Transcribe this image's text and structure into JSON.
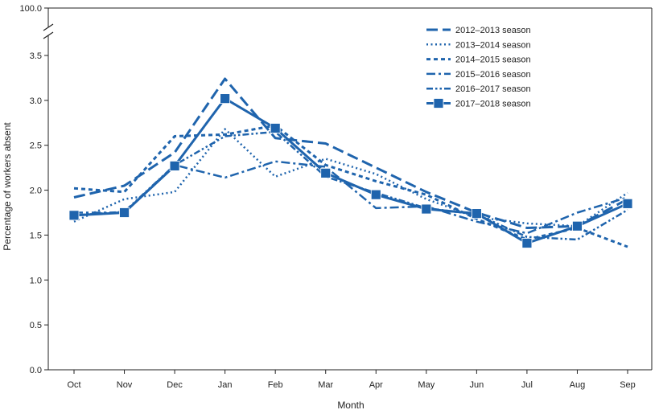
{
  "chart_data": {
    "type": "line",
    "xlabel": "Month",
    "ylabel": "Percentage of workers absent",
    "categories": [
      "Oct",
      "Nov",
      "Dec",
      "Jan",
      "Feb",
      "Mar",
      "Apr",
      "May",
      "Jun",
      "Jul",
      "Aug",
      "Sep"
    ],
    "y_ticks": [
      "0.0",
      "0.5",
      "1.0",
      "1.5",
      "2.0",
      "2.5",
      "3.0",
      "3.5"
    ],
    "y_top_tick": "100.0",
    "ylim": [
      0,
      3.5
    ],
    "axis_break": true,
    "grid": false,
    "legend_position": "top-right",
    "color": "#1f64ad",
    "series": [
      {
        "name": "2012–2013 season",
        "style": "long-dash",
        "values": [
          1.92,
          2.05,
          2.42,
          3.24,
          2.58,
          2.52,
          2.25,
          1.98,
          1.75,
          1.58,
          1.6,
          1.9
        ]
      },
      {
        "name": "2013–2014 season",
        "style": "dotted",
        "values": [
          1.65,
          1.9,
          1.98,
          2.68,
          2.15,
          2.35,
          2.18,
          1.9,
          1.7,
          1.63,
          1.6,
          1.97
        ]
      },
      {
        "name": "2014–2015 season",
        "style": "dense-dash",
        "values": [
          2.02,
          1.98,
          2.6,
          2.62,
          2.72,
          2.28,
          2.1,
          1.95,
          1.68,
          1.45,
          1.58,
          1.37
        ]
      },
      {
        "name": "2015–2016 season",
        "style": "dash-dot",
        "values": [
          1.75,
          1.75,
          2.28,
          2.14,
          2.32,
          2.26,
          1.8,
          1.82,
          1.65,
          1.52,
          1.75,
          1.92
        ]
      },
      {
        "name": "2016–2017 season",
        "style": "dash-dot-dot",
        "values": [
          1.72,
          1.76,
          2.28,
          2.6,
          2.65,
          2.15,
          1.97,
          1.8,
          1.73,
          1.48,
          1.45,
          1.78
        ]
      },
      {
        "name": "2017–2018 season",
        "style": "solid-square",
        "values": [
          1.72,
          1.75,
          2.27,
          3.02,
          2.69,
          2.19,
          1.95,
          1.79,
          1.74,
          1.41,
          1.6,
          1.85
        ]
      }
    ]
  }
}
